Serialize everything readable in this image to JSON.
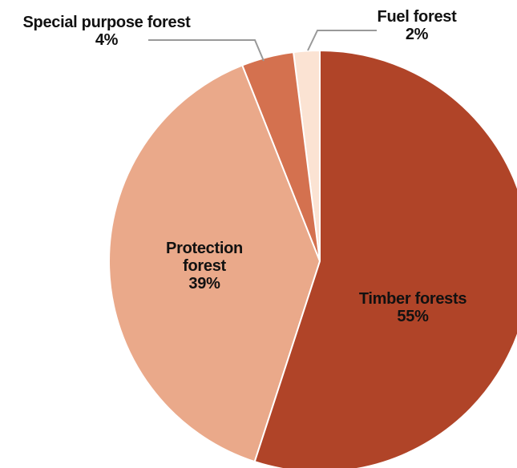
{
  "chart_data": {
    "type": "pie",
    "categories": [
      "Timber forests",
      "Protection forest",
      "Special purpose forest",
      "Fuel forest"
    ],
    "values": [
      55,
      39,
      4,
      2
    ],
    "value_labels": [
      "55%",
      "39%",
      "4%",
      "2%"
    ],
    "colors": [
      "#b04428",
      "#eaa98a",
      "#d4714f",
      "#fbe3d3"
    ]
  }
}
